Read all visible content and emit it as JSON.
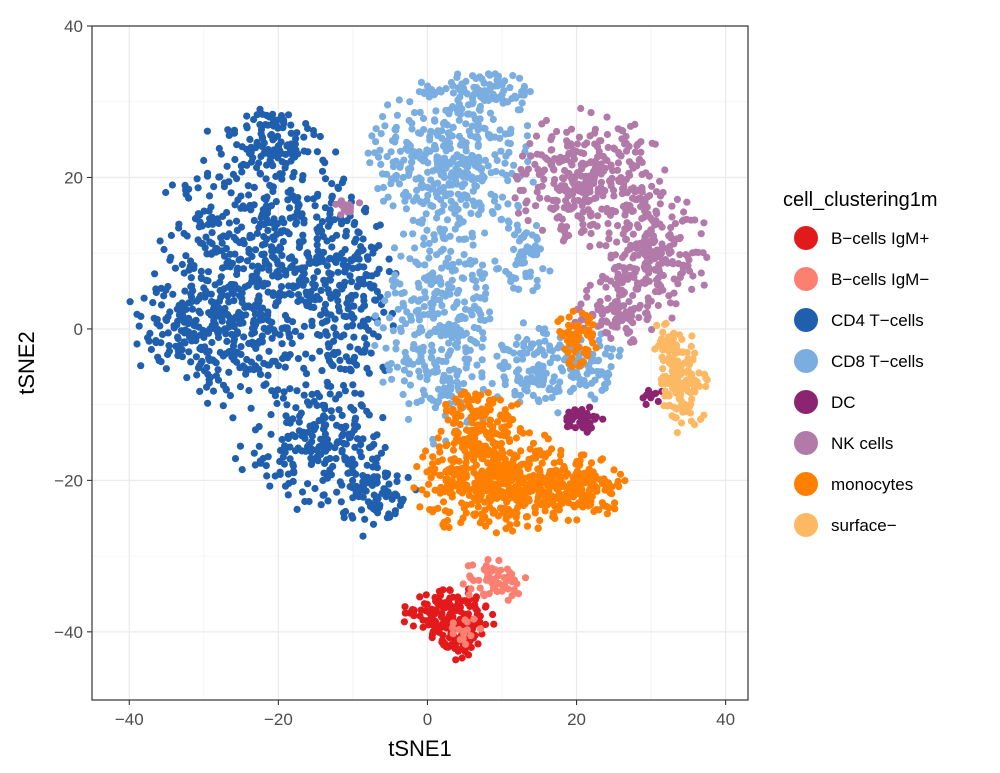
{
  "chart_data": {
    "type": "scatter",
    "title": "",
    "xlabel": "tSNE1",
    "ylabel": "tSNE2",
    "xlim": [
      -45,
      43
    ],
    "ylim": [
      -49,
      40
    ],
    "x_ticks": [
      -40,
      -20,
      0,
      20,
      40
    ],
    "y_ticks": [
      -40,
      -20,
      0,
      20,
      40
    ],
    "x_tick_labels": [
      "−40",
      "−20",
      "0",
      "20",
      "40"
    ],
    "y_tick_labels": [
      "−40",
      "−20",
      "0",
      "20",
      "40"
    ],
    "grid": true,
    "legend": {
      "title": "cell_clustering1m",
      "position": "right"
    },
    "series": [
      {
        "name": "B−cells IgM+",
        "color": "#e31a1c",
        "clusters": [
          {
            "cx": 3,
            "cy": -38,
            "rx": 5.5,
            "ry": 4,
            "n": 160
          },
          {
            "cx": 4,
            "cy": -42,
            "rx": 2.5,
            "ry": 1.5,
            "n": 30
          }
        ]
      },
      {
        "name": "B−cells IgM−",
        "color": "#fb8072",
        "clusters": [
          {
            "cx": 9,
            "cy": -33,
            "rx": 4,
            "ry": 3,
            "n": 60
          },
          {
            "cx": 5,
            "cy": -40,
            "rx": 2,
            "ry": 2.5,
            "n": 15
          }
        ]
      },
      {
        "name": "CD4 T−cells",
        "color": "#1f5fae",
        "clusters": [
          {
            "cx": -22,
            "cy": 8,
            "rx": 14,
            "ry": 18,
            "n": 650
          },
          {
            "cx": -30,
            "cy": 0,
            "rx": 10,
            "ry": 7,
            "n": 180
          },
          {
            "cx": -15,
            "cy": -15,
            "rx": 10,
            "ry": 8,
            "n": 220
          },
          {
            "cx": -10,
            "cy": 5,
            "rx": 6,
            "ry": 12,
            "n": 150
          },
          {
            "cx": -7,
            "cy": -22,
            "rx": 5,
            "ry": 5,
            "n": 80
          },
          {
            "cx": -20,
            "cy": 25,
            "rx": 6,
            "ry": 4,
            "n": 90
          }
        ]
      },
      {
        "name": "CD8 T−cells",
        "color": "#7aade0",
        "clusters": [
          {
            "cx": 3,
            "cy": 22,
            "rx": 10,
            "ry": 10,
            "n": 380
          },
          {
            "cx": 2,
            "cy": 0,
            "rx": 8,
            "ry": 14,
            "n": 340
          },
          {
            "cx": 8,
            "cy": 31,
            "rx": 6,
            "ry": 3,
            "n": 80
          },
          {
            "cx": 15,
            "cy": -5,
            "rx": 6,
            "ry": 6,
            "n": 120
          },
          {
            "cx": 22,
            "cy": -5,
            "rx": 4,
            "ry": 4,
            "n": 60
          },
          {
            "cx": 13,
            "cy": 10,
            "rx": 4,
            "ry": 6,
            "n": 60
          }
        ]
      },
      {
        "name": "DC",
        "color": "#8b2571",
        "clusters": [
          {
            "cx": 21,
            "cy": -12,
            "rx": 2.2,
            "ry": 2,
            "n": 45
          },
          {
            "cx": 30,
            "cy": -9,
            "rx": 1.5,
            "ry": 1.5,
            "n": 10
          }
        ]
      },
      {
        "name": "NK cells",
        "color": "#b27aa8",
        "clusters": [
          {
            "cx": 22,
            "cy": 20,
            "rx": 10,
            "ry": 8,
            "n": 320
          },
          {
            "cx": 30,
            "cy": 10,
            "rx": 7,
            "ry": 8,
            "n": 230
          },
          {
            "cx": 25,
            "cy": 2,
            "rx": 5,
            "ry": 4,
            "n": 90
          },
          {
            "cx": -11,
            "cy": 16,
            "rx": 2,
            "ry": 1.5,
            "n": 15
          }
        ]
      },
      {
        "name": "monocytes",
        "color": "#ff7f00",
        "clusters": [
          {
            "cx": 9,
            "cy": -20,
            "rx": 10,
            "ry": 7,
            "n": 450
          },
          {
            "cx": 20,
            "cy": -21,
            "rx": 6,
            "ry": 4,
            "n": 160
          },
          {
            "cx": 7,
            "cy": -12,
            "rx": 5,
            "ry": 4,
            "n": 110
          },
          {
            "cx": 20,
            "cy": -1,
            "rx": 3,
            "ry": 4,
            "n": 60
          }
        ]
      },
      {
        "name": "surface−",
        "color": "#fdb863",
        "clusters": [
          {
            "cx": 34,
            "cy": -7,
            "rx": 3.5,
            "ry": 6,
            "n": 130
          },
          {
            "cx": 32,
            "cy": -2,
            "rx": 2.5,
            "ry": 2.5,
            "n": 30
          }
        ]
      }
    ]
  }
}
